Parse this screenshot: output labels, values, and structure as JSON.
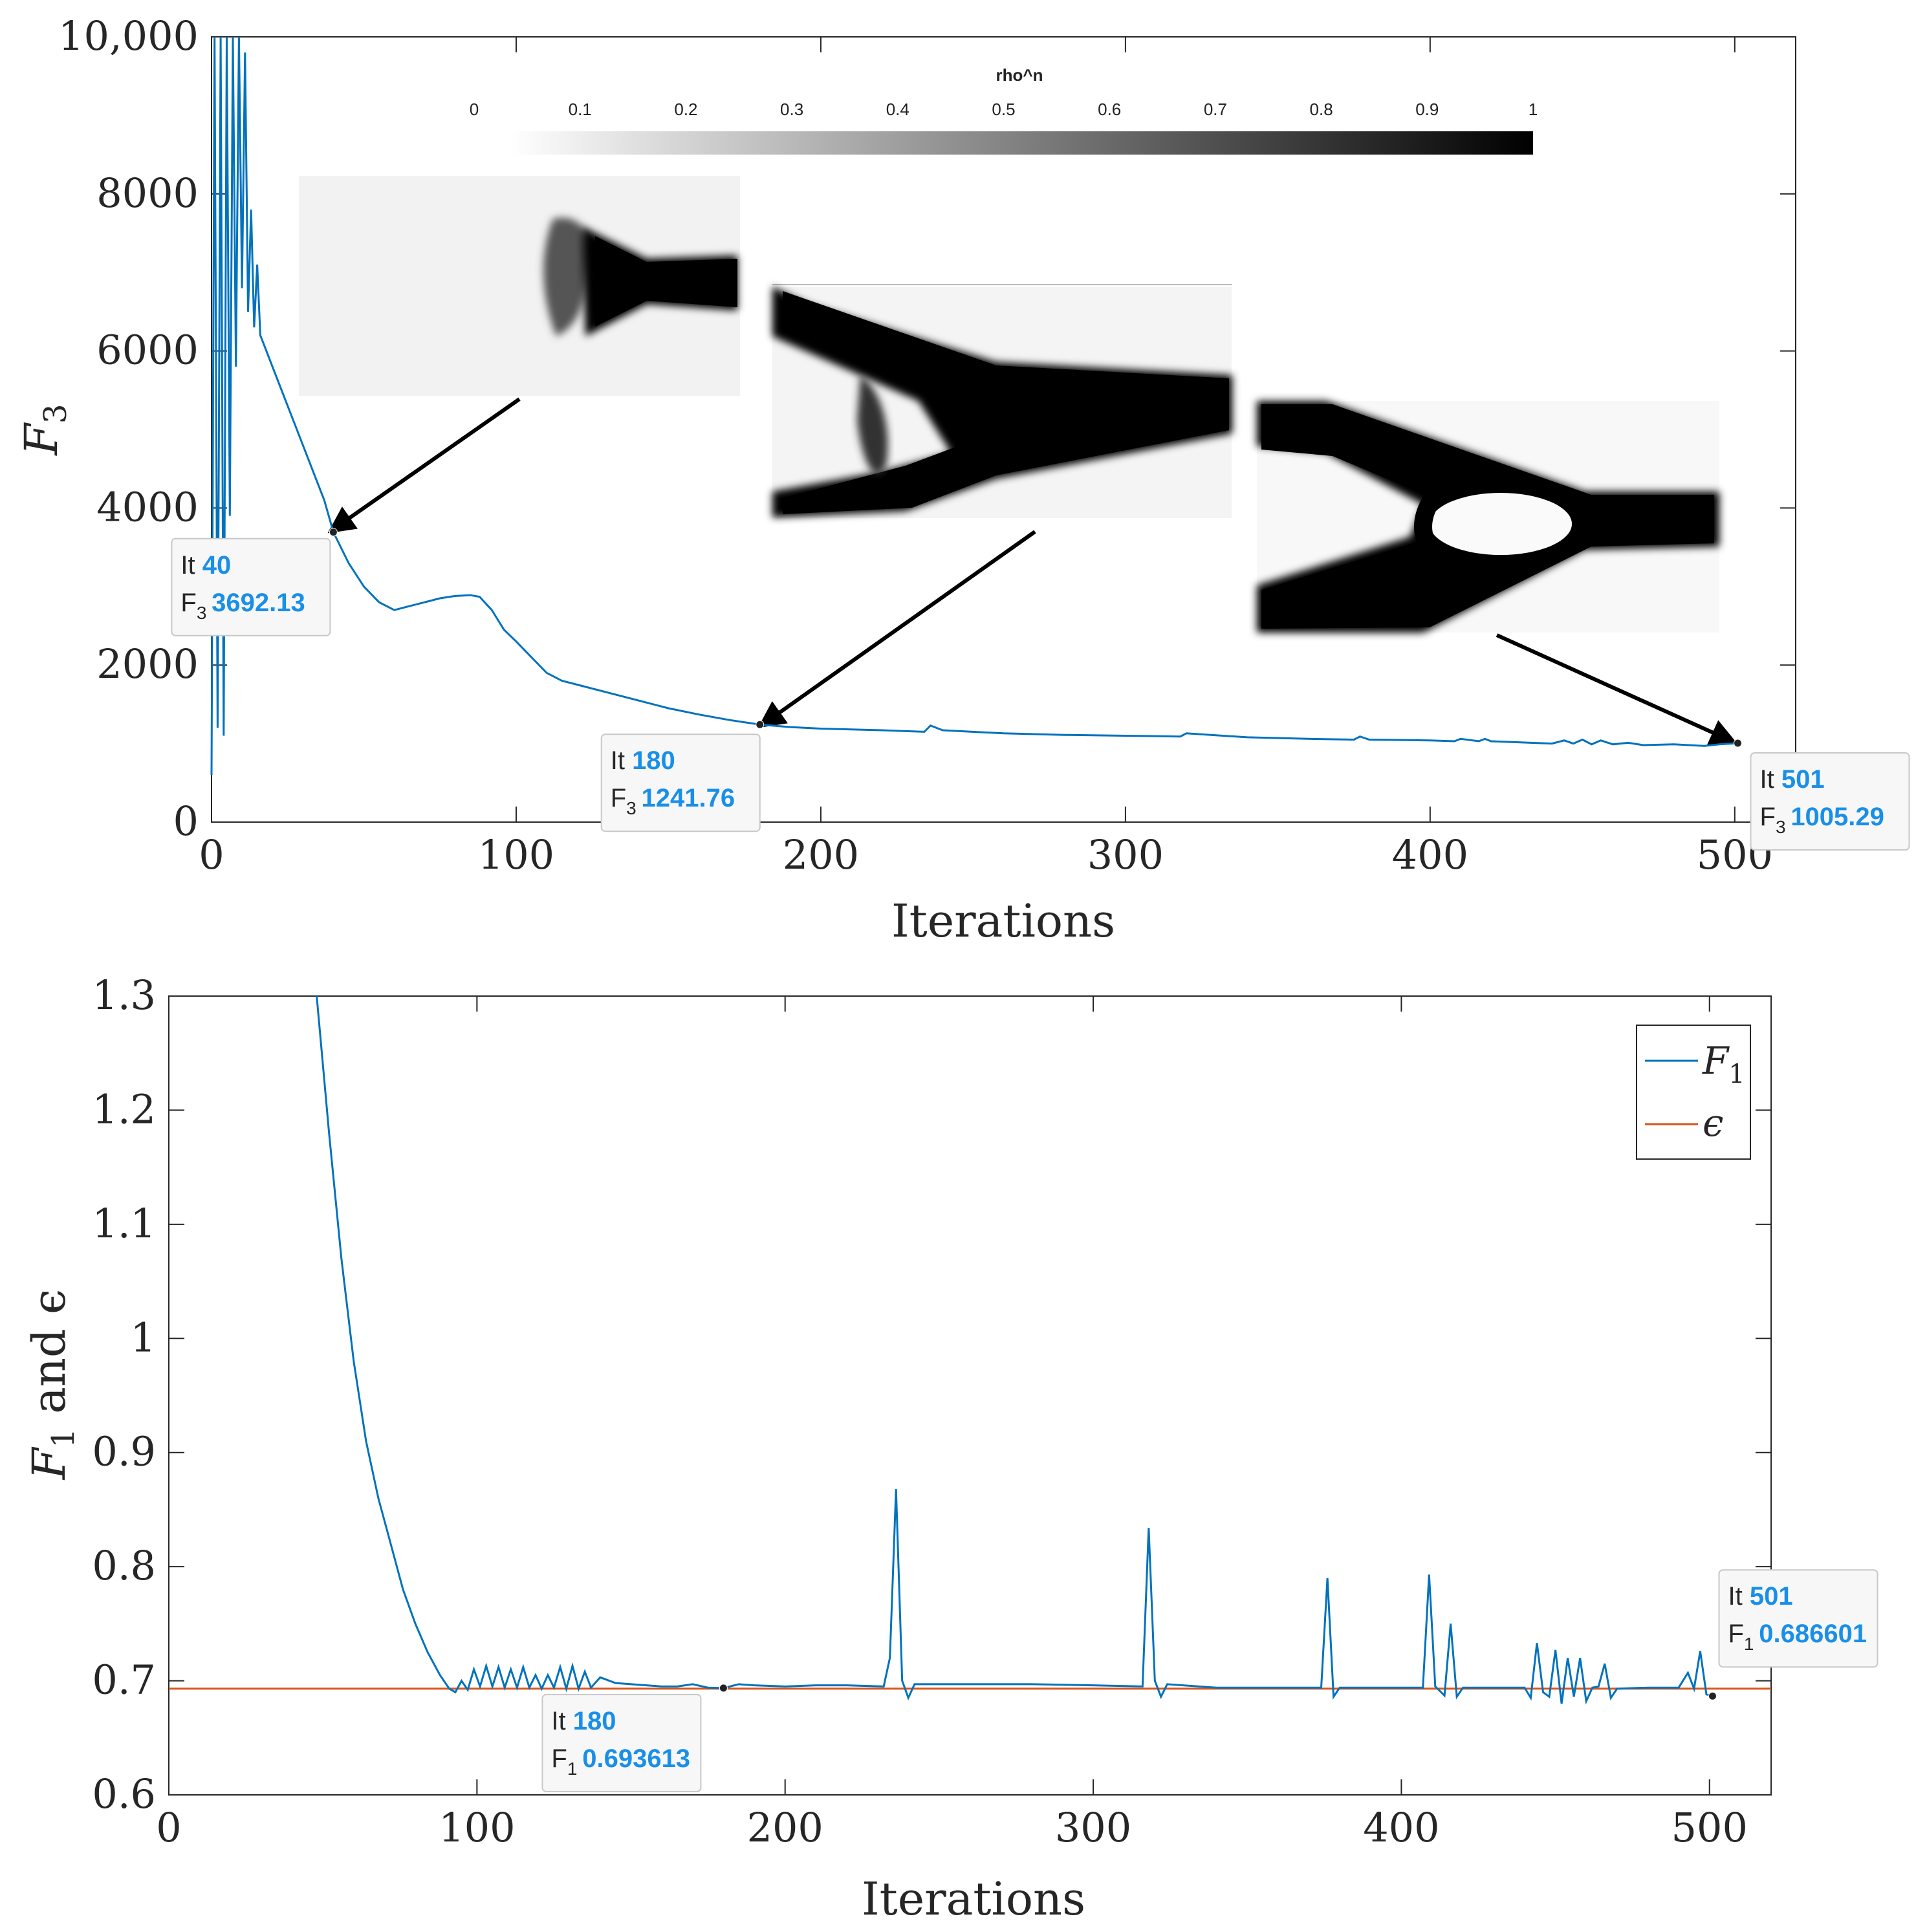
{
  "chart_data": [
    {
      "type": "line",
      "xlabel": "Iterations",
      "ylabel": "F",
      "ylabel_sub": "3",
      "xlim": [
        0,
        520
      ],
      "ylim": [
        0,
        10000
      ],
      "xticks": [
        "0",
        "100",
        "200",
        "300",
        "400",
        "500"
      ],
      "yticks": [
        "0",
        "2000",
        "4000",
        "6000",
        "8000",
        "10,000"
      ],
      "series": [
        {
          "color": "#0072BD",
          "x": [
            0,
            1,
            2,
            3,
            4,
            5,
            6,
            7,
            8,
            9,
            10,
            11,
            12,
            13,
            14,
            15,
            16,
            18,
            20,
            22,
            25,
            28,
            31,
            34,
            37,
            40,
            45,
            50,
            55,
            60,
            65,
            70,
            75,
            80,
            85,
            88,
            92,
            96,
            100,
            105,
            110,
            115,
            120,
            130,
            140,
            150,
            160,
            170,
            180,
            190,
            200,
            210,
            220,
            234,
            236,
            240,
            260,
            280,
            300,
            318,
            320,
            340,
            360,
            375,
            377,
            380,
            400,
            408,
            410,
            416,
            418,
            420,
            440,
            444,
            447,
            450,
            453,
            456,
            460,
            465,
            470,
            480,
            490,
            495,
            501
          ],
          "y": [
            600,
            10000,
            1200,
            10000,
            1100,
            10000,
            3900,
            10000,
            5800,
            10000,
            6800,
            9800,
            6500,
            7800,
            6300,
            7100,
            6200,
            6000,
            5800,
            5600,
            5300,
            5000,
            4700,
            4400,
            4100,
            3692,
            3300,
            3000,
            2800,
            2700,
            2750,
            2800,
            2850,
            2880,
            2890,
            2870,
            2700,
            2450,
            2300,
            2100,
            1900,
            1800,
            1750,
            1650,
            1550,
            1450,
            1370,
            1300,
            1242,
            1210,
            1190,
            1180,
            1170,
            1150,
            1230,
            1170,
            1130,
            1110,
            1100,
            1090,
            1130,
            1080,
            1060,
            1050,
            1090,
            1050,
            1040,
            1030,
            1060,
            1030,
            1060,
            1030,
            1000,
            1040,
            1000,
            1050,
            990,
            1040,
            990,
            1010,
            980,
            990,
            970,
            990,
            1005
          ]
        }
      ],
      "datatips": [
        {
          "x_label": "It",
          "x_value": "40",
          "y_label": "F",
          "y_sub": "3",
          "y_value": "3692.13",
          "x": 40,
          "y": 3692
        },
        {
          "x_label": "It",
          "x_value": "180",
          "y_label": "F",
          "y_sub": "3",
          "y_value": "1241.76",
          "x": 180,
          "y": 1242
        },
        {
          "x_label": "It",
          "x_value": "501",
          "y_label": "F",
          "y_sub": "3",
          "y_value": "1005.29",
          "x": 501,
          "y": 1005
        }
      ],
      "colorbar": {
        "label": "rho^n",
        "ticks": [
          "0",
          "0.1",
          "0.2",
          "0.3",
          "0.4",
          "0.5",
          "0.6",
          "0.7",
          "0.8",
          "0.9",
          "1"
        ],
        "colormap": [
          "#ffffff",
          "#000000"
        ]
      },
      "grid": false
    },
    {
      "type": "line",
      "xlabel": "Iterations",
      "ylabel": "F",
      "ylabel_sub": "1",
      "ylabel_suffix": " and ϵ",
      "xlim": [
        0,
        520
      ],
      "ylim": [
        0.6,
        1.3
      ],
      "xticks": [
        "0",
        "100",
        "200",
        "300",
        "400",
        "500"
      ],
      "yticks": [
        "0.6",
        "0.7",
        "0.8",
        "0.9",
        "1",
        "1.1",
        "1.2",
        "1.3"
      ],
      "legend_position": "top-right",
      "series": [
        {
          "name": "F",
          "name_sub": "1",
          "color": "#0072BD",
          "x": [
            48,
            52,
            56,
            60,
            64,
            68,
            72,
            76,
            80,
            84,
            88,
            91,
            93,
            95,
            97,
            99,
            101,
            103,
            105,
            107,
            109,
            111,
            113,
            115,
            117,
            119,
            121,
            123,
            125,
            127,
            129,
            131,
            133,
            135,
            137,
            140,
            145,
            150,
            155,
            160,
            165,
            170,
            175,
            180,
            185,
            190,
            200,
            210,
            220,
            232,
            234,
            236,
            238,
            240,
            242,
            260,
            280,
            300,
            316,
            318,
            320,
            322,
            324,
            340,
            360,
            374,
            376,
            378,
            380,
            400,
            407,
            409,
            411,
            414,
            416,
            418,
            420,
            440,
            442,
            444,
            446,
            448,
            450,
            452,
            454,
            456,
            458,
            460,
            462,
            464,
            466,
            468,
            470,
            480,
            490,
            493,
            495,
            497,
            499,
            501
          ],
          "y": [
            1.3,
            1.18,
            1.07,
            0.98,
            0.91,
            0.86,
            0.82,
            0.78,
            0.75,
            0.725,
            0.705,
            0.693,
            0.69,
            0.7,
            0.692,
            0.71,
            0.695,
            0.713,
            0.695,
            0.712,
            0.694,
            0.71,
            0.694,
            0.712,
            0.694,
            0.705,
            0.693,
            0.705,
            0.694,
            0.712,
            0.693,
            0.713,
            0.693,
            0.708,
            0.694,
            0.703,
            0.698,
            0.697,
            0.696,
            0.695,
            0.695,
            0.697,
            0.694,
            0.6936,
            0.697,
            0.696,
            0.695,
            0.696,
            0.696,
            0.695,
            0.72,
            0.868,
            0.7,
            0.685,
            0.697,
            0.697,
            0.697,
            0.696,
            0.695,
            0.834,
            0.7,
            0.686,
            0.697,
            0.694,
            0.694,
            0.694,
            0.79,
            0.686,
            0.694,
            0.694,
            0.694,
            0.793,
            0.695,
            0.687,
            0.75,
            0.686,
            0.694,
            0.694,
            0.685,
            0.733,
            0.69,
            0.686,
            0.727,
            0.68,
            0.72,
            0.686,
            0.72,
            0.682,
            0.694,
            0.695,
            0.715,
            0.685,
            0.693,
            0.694,
            0.694,
            0.707,
            0.693,
            0.726,
            0.688,
            0.6866
          ]
        },
        {
          "name": "ϵ",
          "color": "#D95319",
          "x": [
            0,
            520
          ],
          "y": [
            0.6931,
            0.6931
          ]
        }
      ],
      "datatips": [
        {
          "x_label": "It",
          "x_value": "180",
          "y_label": "F",
          "y_sub": "1",
          "y_value": "0.693613",
          "x": 180,
          "y": 0.6936
        },
        {
          "x_label": "It",
          "x_value": "501",
          "y_label": "F",
          "y_sub": "1",
          "y_value": "0.686601",
          "x": 501,
          "y": 0.6866
        }
      ],
      "grid": false
    }
  ]
}
